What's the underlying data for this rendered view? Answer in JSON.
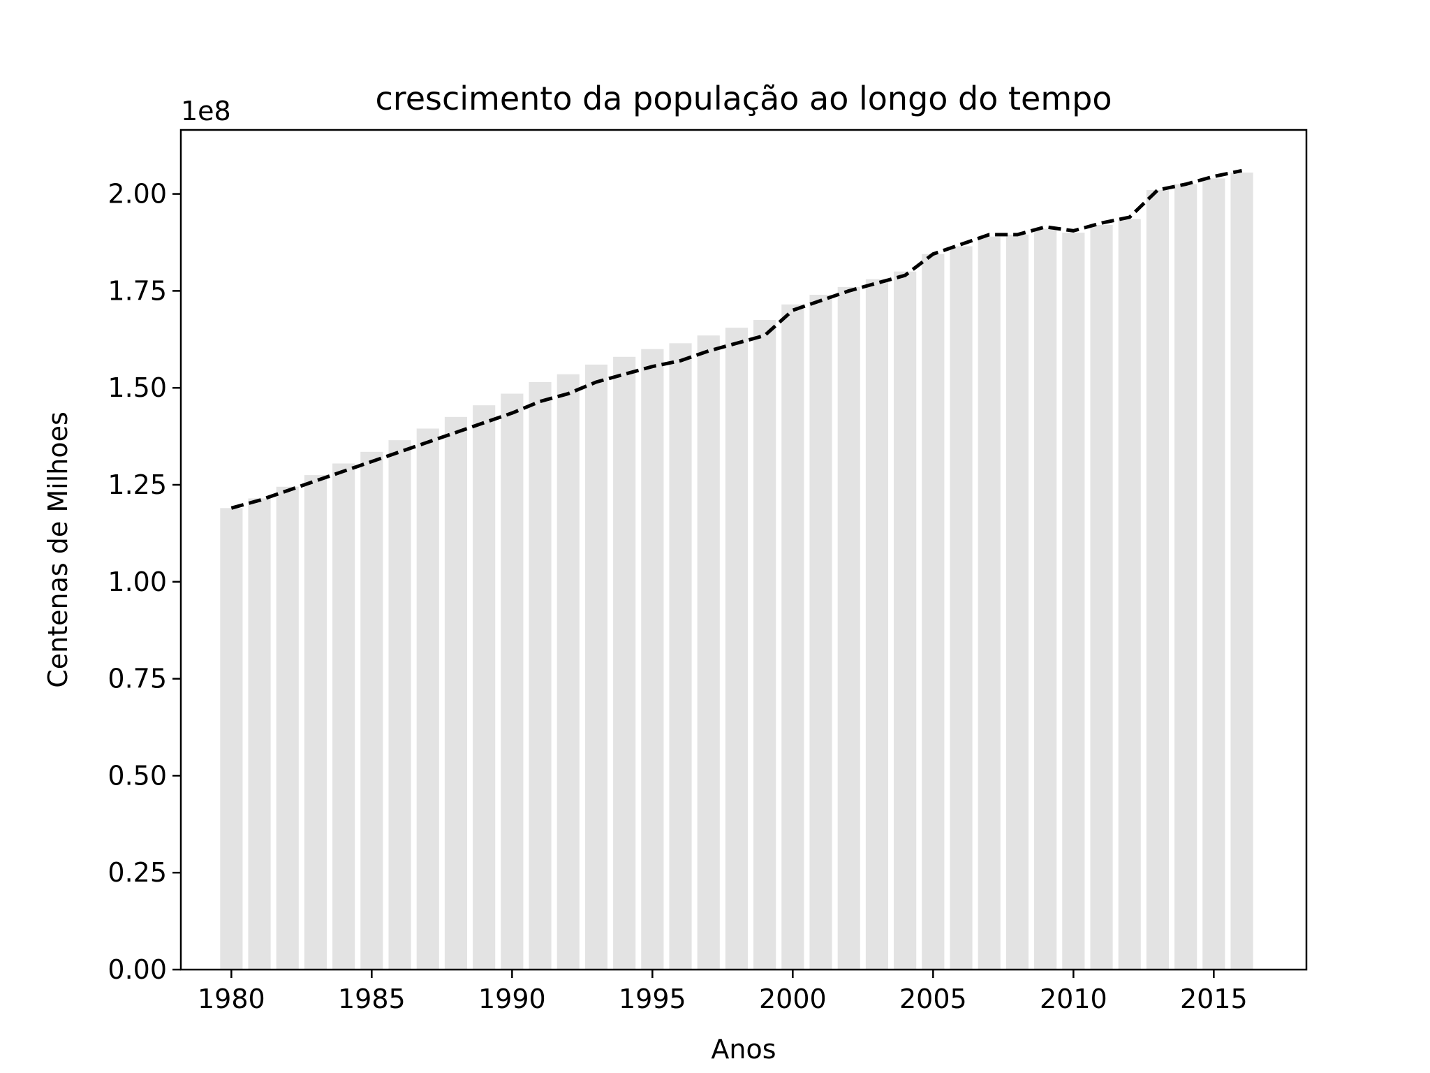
{
  "chart_data": {
    "type": "bar",
    "title": "crescimento da população ao longo do tempo",
    "xlabel": "Anos",
    "ylabel": "Centenas de Milhoes",
    "offset_label": "1e8",
    "scale_factor": 100000000,
    "xlim": [
      1978.2,
      2018.3
    ],
    "ylim": [
      0,
      216500000
    ],
    "x_ticks": [
      1980,
      1985,
      1990,
      1995,
      2000,
      2005,
      2010,
      2015
    ],
    "y_ticks": [
      0,
      25000000,
      50000000,
      75000000,
      100000000,
      125000000,
      150000000,
      175000000,
      200000000
    ],
    "y_tick_labels": [
      "0.00",
      "0.25",
      "0.50",
      "0.75",
      "1.00",
      "1.25",
      "1.50",
      "1.75",
      "2.00"
    ],
    "grid": false,
    "x": [
      1980,
      1981,
      1982,
      1983,
      1984,
      1985,
      1986,
      1987,
      1988,
      1989,
      1990,
      1991,
      1992,
      1993,
      1994,
      1995,
      1996,
      1997,
      1998,
      1999,
      2000,
      2001,
      2002,
      2003,
      2004,
      2005,
      2006,
      2007,
      2008,
      2009,
      2010,
      2011,
      2012,
      2013,
      2014,
      2015,
      2016
    ],
    "series": [
      {
        "type": "bar",
        "color": "#e3e3e3",
        "values": [
          119000000,
          121500000,
          124500000,
          127500000,
          130500000,
          133500000,
          136500000,
          139500000,
          142500000,
          145500000,
          148500000,
          151500000,
          153500000,
          156000000,
          158000000,
          160000000,
          161500000,
          163500000,
          165500000,
          167500000,
          171500000,
          174000000,
          176000000,
          178000000,
          180000000,
          184500000,
          186500000,
          189000000,
          189500000,
          191000000,
          190000000,
          192000000,
          193500000,
          201000000,
          202500000,
          204000000,
          205500000
        ]
      },
      {
        "type": "line",
        "style": "dashed",
        "color": "#000000",
        "values": [
          119000000,
          121000000,
          123500000,
          126000000,
          128500000,
          131000000,
          133500000,
          136000000,
          138500000,
          141000000,
          143500000,
          146500000,
          148500000,
          151500000,
          153500000,
          155500000,
          157000000,
          159500000,
          161500000,
          163500000,
          170000000,
          172500000,
          175000000,
          177000000,
          179000000,
          184500000,
          187000000,
          189500000,
          189500000,
          191500000,
          190500000,
          192500000,
          194000000,
          201000000,
          202500000,
          204500000,
          206000000
        ]
      }
    ]
  }
}
